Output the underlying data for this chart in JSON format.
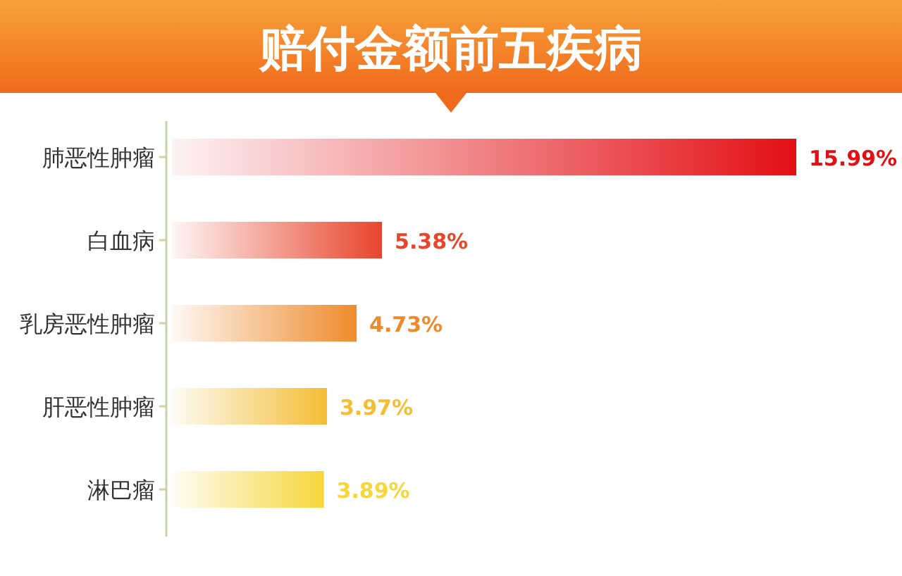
{
  "chart_data": {
    "type": "bar",
    "orientation": "horizontal",
    "title": "赔付金额前五疾病",
    "categories": [
      "肺恶性肿瘤",
      "白血病",
      "乳房恶性肿瘤",
      "肝恶性肿瘤",
      "淋巴瘤"
    ],
    "values": [
      15.99,
      5.38,
      4.73,
      3.97,
      3.89
    ],
    "colors": [
      "#e30f14",
      "#e8452c",
      "#ef8a2c",
      "#f3bd34",
      "#f6d63a"
    ],
    "value_labels": [
      "15.99%",
      "5.38%",
      "4.73%",
      "3.97%",
      "3.89%"
    ]
  }
}
